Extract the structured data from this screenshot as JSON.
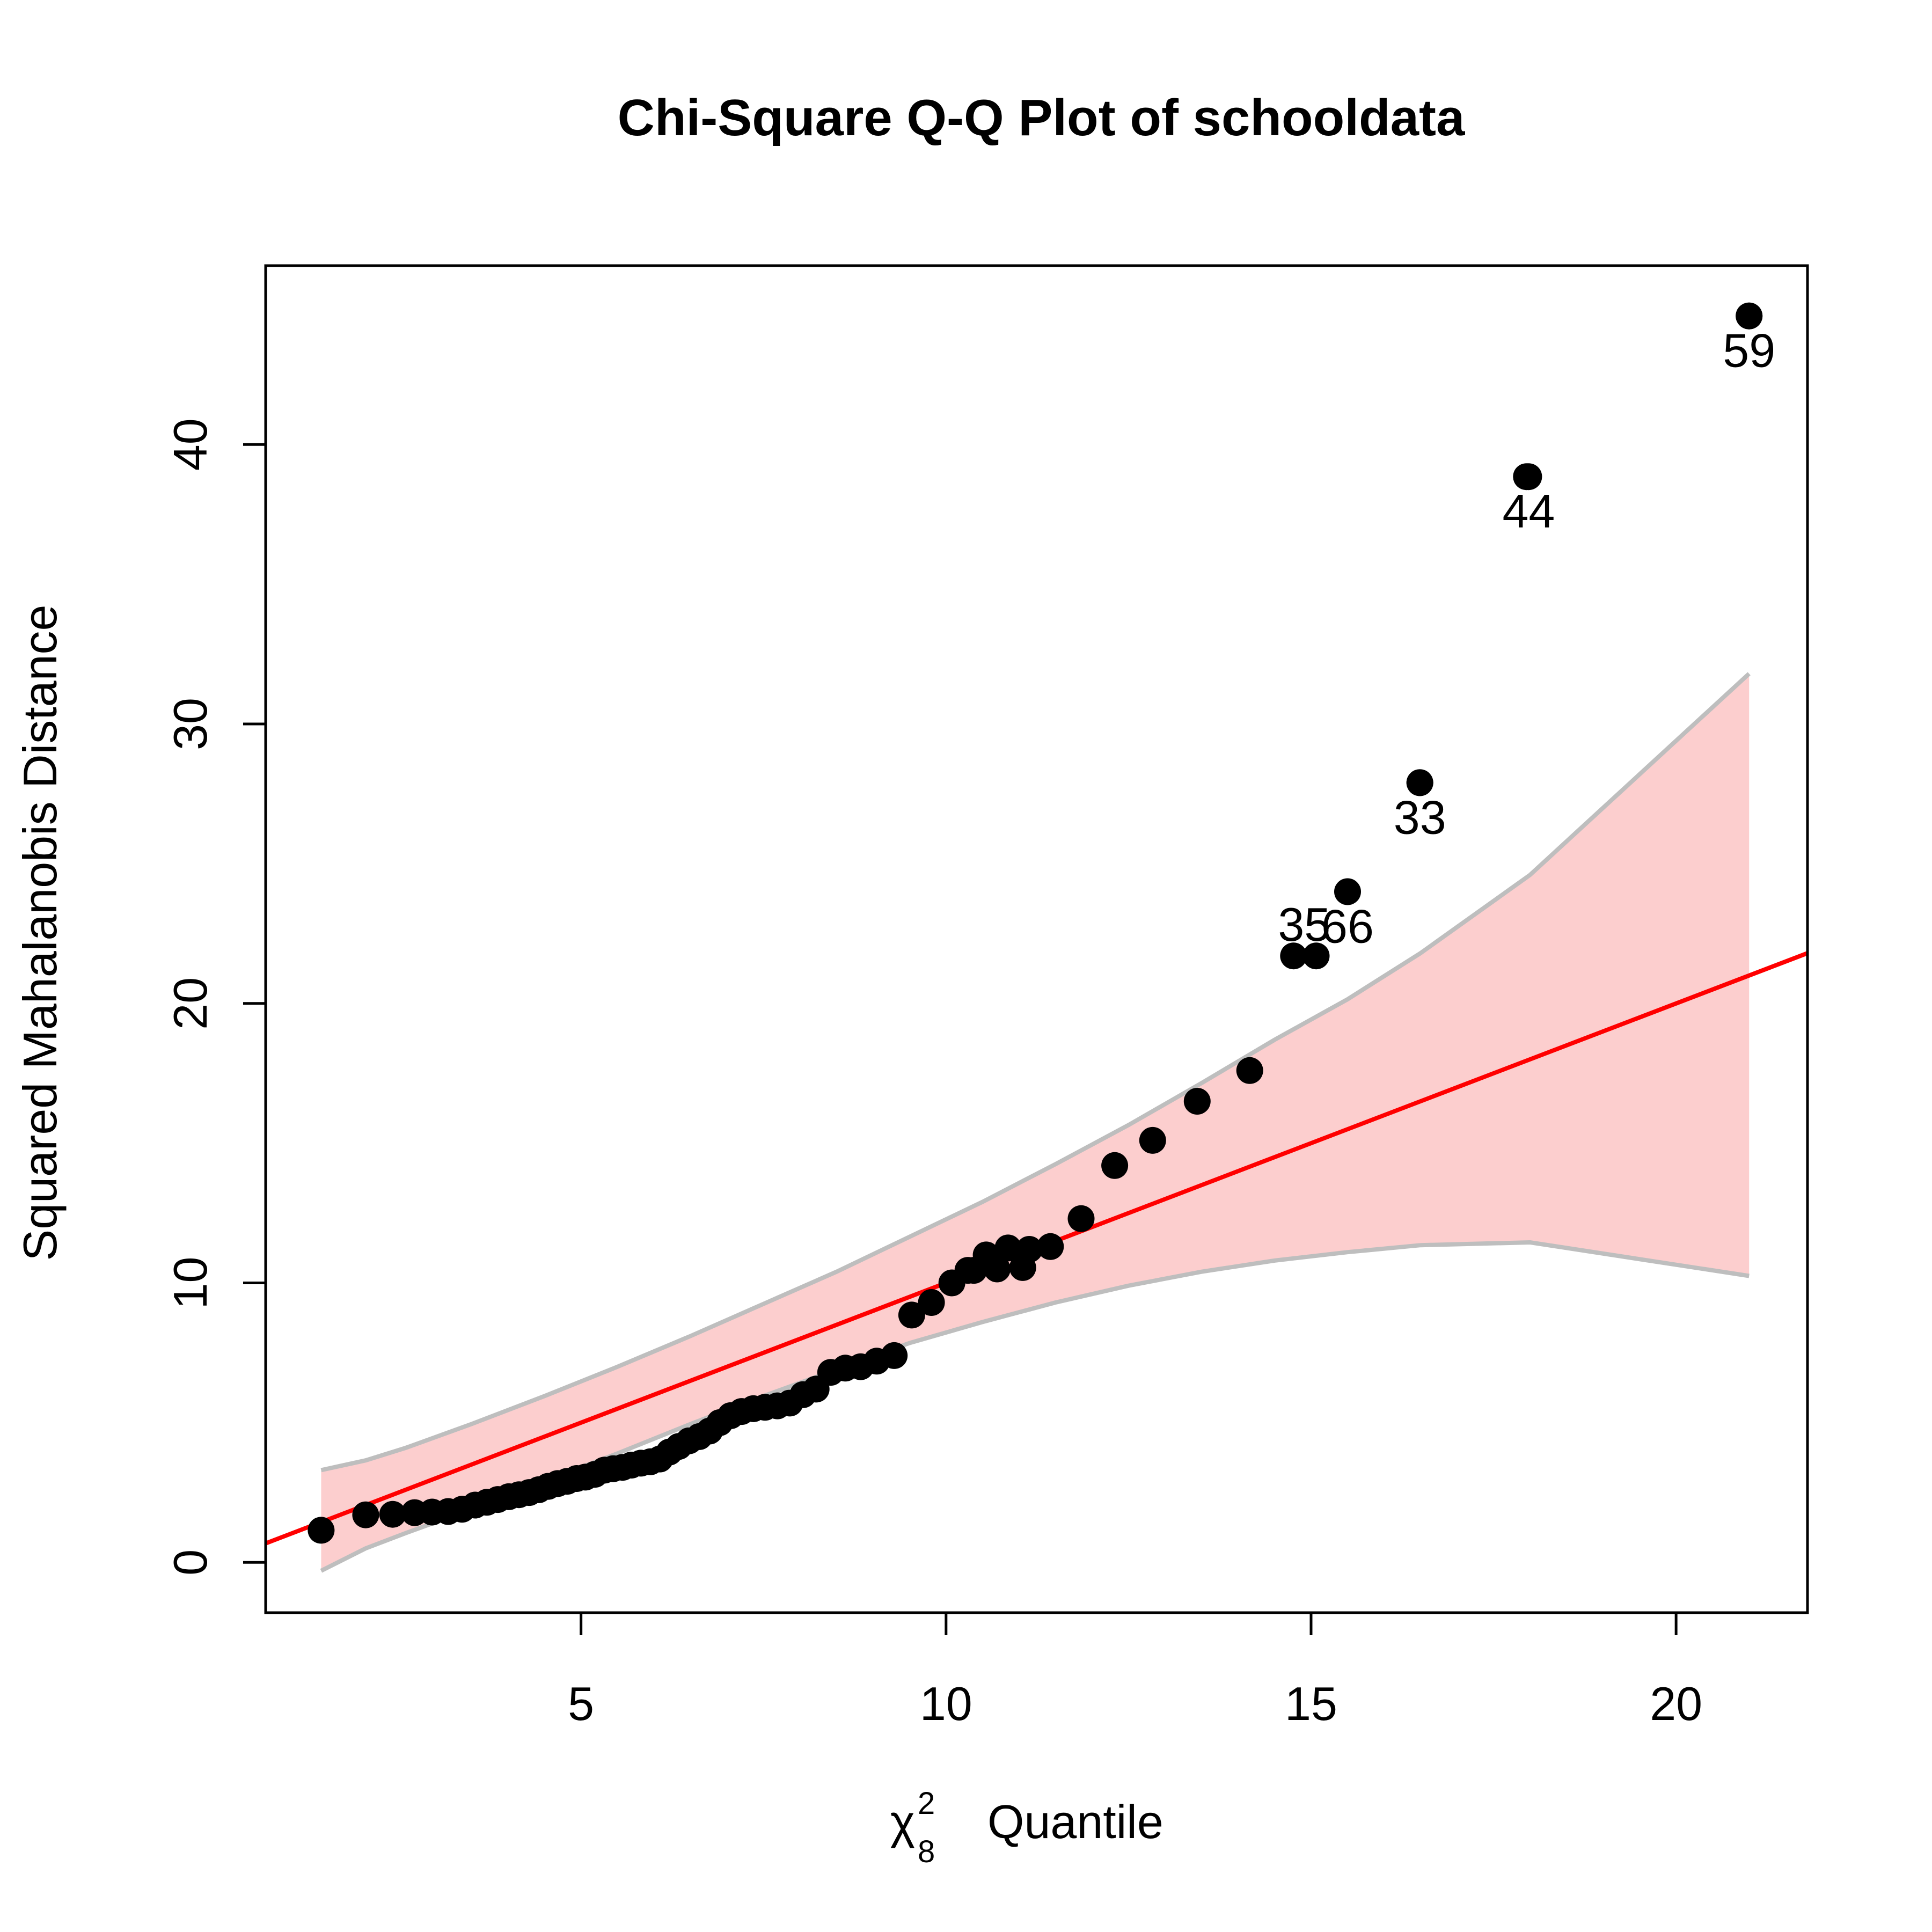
{
  "chart_data": {
    "type": "scatter",
    "title": "Chi-Square Q-Q Plot of schooldata",
    "xlabel": {
      "symbol": "χ",
      "superscript": "2",
      "subscript": "8",
      "text": "Quantile"
    },
    "ylabel": "Squared Mahalanobis Distance",
    "xlim": [
      0.68,
      21.8
    ],
    "ylim": [
      -1.8,
      46.4
    ],
    "xticks": [
      5,
      10,
      15,
      20
    ],
    "xtick_labels": [
      "5",
      "10",
      "15",
      "20"
    ],
    "yticks": [
      0,
      10,
      20,
      30,
      40
    ],
    "ytick_labels": [
      "0",
      "10",
      "20",
      "30",
      "40"
    ],
    "grid": false,
    "colors": {
      "points": "#000000",
      "line": "#ff0000",
      "band_fill": "#fccece",
      "band_edge": "#bebebe",
      "frame": "#000000"
    },
    "reference_line": {
      "intercept": 0.0,
      "slope": 1.0
    },
    "confidence_band": {
      "x": [
        1.44,
        2.05,
        2.6,
        3.5,
        4.5,
        5.5,
        6.5,
        7.5,
        8.5,
        9.5,
        10.5,
        11.5,
        12.5,
        13.5,
        14.5,
        15.5,
        16.5,
        18.0,
        21.0
      ],
      "upper": [
        3.3,
        3.65,
        4.1,
        4.95,
        5.95,
        7.0,
        8.1,
        9.25,
        10.4,
        11.65,
        12.9,
        14.25,
        15.65,
        17.15,
        18.7,
        20.15,
        21.8,
        24.6,
        31.8
      ],
      "lower": [
        -0.3,
        0.5,
        1.05,
        1.9,
        2.9,
        3.9,
        4.95,
        5.95,
        6.9,
        7.85,
        8.6,
        9.3,
        9.9,
        10.4,
        10.8,
        11.1,
        11.35,
        11.45,
        10.25
      ]
    },
    "points": {
      "x": [
        1.44,
        2.05,
        2.42,
        2.72,
        2.96,
        3.18,
        3.37,
        3.55,
        3.71,
        3.86,
        4.01,
        4.15,
        4.29,
        4.42,
        4.55,
        4.68,
        4.81,
        4.94,
        5.06,
        5.19,
        5.32,
        5.44,
        5.57,
        5.69,
        5.82,
        5.95,
        6.08,
        6.21,
        6.34,
        6.48,
        6.62,
        6.76,
        6.9,
        7.05,
        7.2,
        7.36,
        7.52,
        7.69,
        7.86,
        8.04,
        8.22,
        8.42,
        8.62,
        8.83,
        9.05,
        9.29,
        9.53,
        9.8,
        10.08,
        10.38,
        10.7,
        11.05,
        11.43,
        11.85,
        12.31,
        12.83,
        13.44,
        14.16,
        15.07,
        16.49,
        17.95,
        21.0,
        10.3,
        10.55,
        10.85,
        11.14
      ],
      "y": [
        1.15,
        1.7,
        1.72,
        1.78,
        1.8,
        1.82,
        1.9,
        2.05,
        2.15,
        2.25,
        2.35,
        2.42,
        2.5,
        2.6,
        2.72,
        2.82,
        2.9,
        3.0,
        3.05,
        3.15,
        3.3,
        3.35,
        3.4,
        3.48,
        3.55,
        3.6,
        3.7,
        3.95,
        4.15,
        4.35,
        4.5,
        4.7,
        5.0,
        5.25,
        5.4,
        5.5,
        5.55,
        5.6,
        5.7,
        6.0,
        6.2,
        6.8,
        6.95,
        7.0,
        7.2,
        7.4,
        8.85,
        9.3,
        10.0,
        10.45,
        10.5,
        10.55,
        11.3,
        12.3,
        14.2,
        15.1,
        16.5,
        17.6,
        21.7,
        27.9,
        38.85,
        44.6,
        10.45,
        11.0,
        11.25,
        11.2
      ]
    },
    "annotations": [
      {
        "label": "35",
        "x": 14.76,
        "y": 21.7,
        "anchor": "end"
      },
      {
        "label": "66",
        "x": 15.5,
        "y": 24.0,
        "anchor": "middle"
      },
      {
        "label": "33",
        "x": 16.49,
        "y": 27.9,
        "anchor": "middle"
      },
      {
        "label": "44",
        "x": 17.98,
        "y": 38.85,
        "anchor": "middle"
      },
      {
        "label": "59",
        "x": 21.0,
        "y": 44.6,
        "anchor": "middle"
      }
    ],
    "extra_points": [
      {
        "x": 14.76,
        "y": 21.7
      },
      {
        "x": 15.5,
        "y": 24.0
      },
      {
        "x": 16.49,
        "y": 27.9
      },
      {
        "x": 17.98,
        "y": 38.85
      },
      {
        "x": 21.0,
        "y": 44.6
      }
    ]
  }
}
